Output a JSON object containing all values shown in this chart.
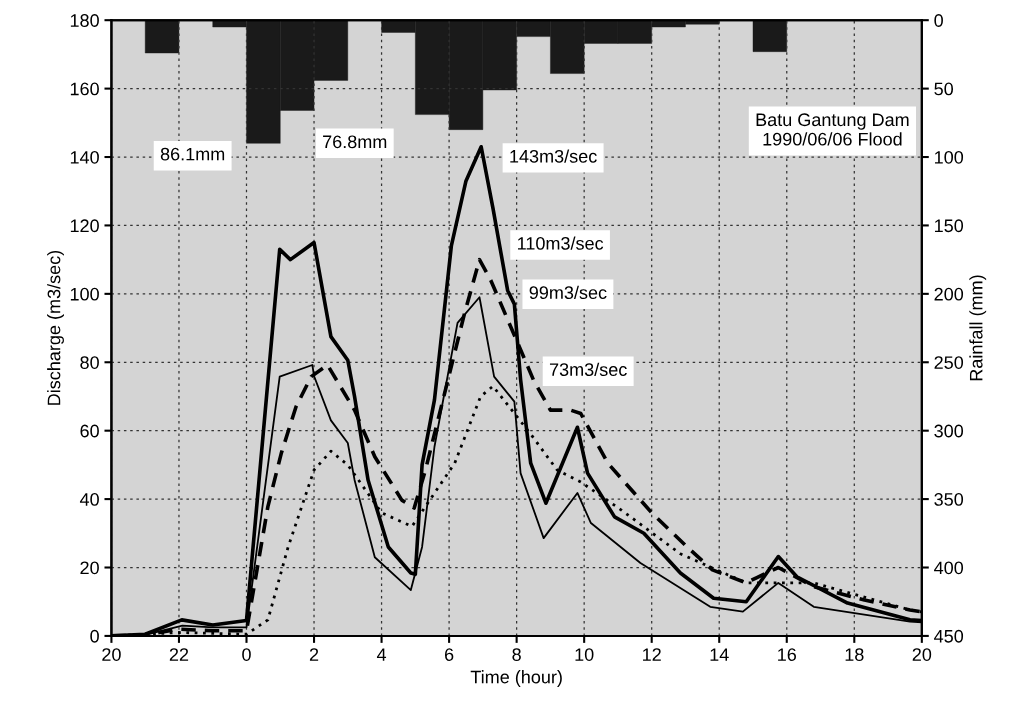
{
  "chart_data": {
    "type": "line",
    "xlabel": "Time (hour)",
    "ylabel": "Discharge (m3/sec)",
    "y2label": "Rainfall (mm)",
    "xlim": [
      "1990-06-05T20:00",
      "1990-06-06T20:00"
    ],
    "xticks": [
      {
        "value": "1990-06-05T20:00",
        "label": "20"
      },
      {
        "value": "1990-06-05T22:00",
        "label": "22"
      },
      {
        "value": "1990-06-06T00:00",
        "label": "0"
      },
      {
        "value": "1990-06-06T02:00",
        "label": "2"
      },
      {
        "value": "1990-06-06T04:00",
        "label": "4"
      },
      {
        "value": "1990-06-06T06:00",
        "label": "6"
      },
      {
        "value": "1990-06-06T08:00",
        "label": "8"
      },
      {
        "value": "1990-06-06T10:00",
        "label": "10"
      },
      {
        "value": "1990-06-06T12:00",
        "label": "12"
      },
      {
        "value": "1990-06-06T14:00",
        "label": "14"
      },
      {
        "value": "1990-06-06T16:00",
        "label": "16"
      },
      {
        "value": "1990-06-06T18:00",
        "label": "18"
      },
      {
        "value": "1990-06-06T20:00",
        "label": "20"
      }
    ],
    "ylim": [
      0,
      180
    ],
    "yticks": [
      0,
      20,
      40,
      60,
      80,
      100,
      120,
      140,
      160,
      180
    ],
    "y2lim": [
      450,
      0
    ],
    "y2ticks": [
      0,
      50,
      100,
      150,
      200,
      250,
      300,
      350,
      400,
      450
    ],
    "grid": true,
    "legend": false,
    "marker": "none",
    "series": [
      {
        "type": "bar",
        "axis": "y2",
        "color": "#1a1a1a",
        "x": [
          "1990-06-05T21:30",
          "1990-06-05T23:30",
          "1990-06-06T00:30",
          "1990-06-06T01:30",
          "1990-06-06T02:30",
          "1990-06-06T04:30",
          "1990-06-06T05:30",
          "1990-06-06T06:30",
          "1990-06-06T07:30",
          "1990-06-06T08:30",
          "1990-06-06T09:30",
          "1990-06-06T10:30",
          "1990-06-06T11:30",
          "1990-06-06T12:30",
          "1990-06-06T13:30",
          "1990-06-06T15:30"
        ],
        "values": [
          24,
          5,
          90,
          66,
          44,
          9,
          69,
          80,
          51,
          12,
          39,
          17,
          17,
          5,
          3,
          23
        ]
      },
      {
        "line_style": "solid",
        "color": "#000000",
        "x": [
          "1990-06-05T20:00",
          "1990-06-05T21:00",
          "1990-06-05T22:05",
          "1990-06-05T23:00",
          "1990-06-06T00:00",
          "1990-06-06T00:59",
          "1990-06-06T01:18",
          "1990-06-06T02:00",
          "1990-06-06T02:30",
          "1990-06-06T03:00",
          "1990-06-06T03:12",
          "1990-06-06T03:36",
          "1990-06-06T04:12",
          "1990-06-06T04:52",
          "1990-06-06T05:00",
          "1990-06-06T05:12",
          "1990-06-06T05:34",
          "1990-06-06T06:04",
          "1990-06-06T06:30",
          "1990-06-06T06:57",
          "1990-06-06T07:18",
          "1990-06-06T07:44",
          "1990-06-06T07:56",
          "1990-06-06T08:07",
          "1990-06-06T08:25",
          "1990-06-06T08:52",
          "1990-06-06T09:48",
          "1990-06-06T10:06",
          "1990-06-06T10:54",
          "1990-06-06T11:46",
          "1990-06-06T12:51",
          "1990-06-06T13:50",
          "1990-06-06T14:48",
          "1990-06-06T15:45",
          "1990-06-06T16:18",
          "1990-06-06T17:48",
          "1990-06-06T19:39",
          "1990-06-06T20:00"
        ],
        "values": [
          0,
          0.5,
          4.7,
          3.2,
          4.5,
          113,
          110,
          115,
          87.5,
          80.6,
          70,
          45.6,
          26,
          18.4,
          18,
          50,
          69,
          114,
          133,
          143,
          125,
          101,
          97,
          75,
          50.5,
          38.8,
          61,
          47.6,
          34.8,
          30,
          18.4,
          11,
          10,
          23.2,
          17.3,
          9.6,
          4.7,
          4.5
        ]
      },
      {
        "line_style": "solid",
        "color": "#000000",
        "x": [
          "1990-06-05T20:00",
          "1990-06-05T21:00",
          "1990-06-05T22:06",
          "1990-06-05T23:00",
          "1990-06-06T00:00",
          "1990-06-06T00:59",
          "1990-06-06T01:57",
          "1990-06-06T02:00",
          "1990-06-06T02:30",
          "1990-06-06T03:00",
          "1990-06-06T03:12",
          "1990-06-06T03:48",
          "1990-06-06T04:52",
          "1990-06-06T05:12",
          "1990-06-06T05:34",
          "1990-06-06T06:15",
          "1990-06-06T06:54",
          "1990-06-06T07:20",
          "1990-06-06T07:56",
          "1990-06-06T08:07",
          "1990-06-06T08:48",
          "1990-06-06T09:48",
          "1990-06-06T10:12",
          "1990-06-06T11:40",
          "1990-06-06T13:44",
          "1990-06-06T14:42",
          "1990-06-06T15:45",
          "1990-06-06T16:48",
          "1990-06-06T19:39",
          "1990-06-06T20:00"
        ],
        "values": [
          0,
          0.3,
          3,
          2.5,
          2.5,
          75.8,
          79.2,
          76,
          63,
          56.4,
          45.6,
          23,
          13.4,
          26,
          55.3,
          91.5,
          99,
          75.8,
          68.5,
          47.6,
          28.6,
          41.8,
          33,
          21.3,
          8.5,
          7.1,
          15.5,
          8.5,
          4.2,
          4
        ]
      },
      {
        "line_style": "dashed",
        "color": "#000000",
        "x": [
          "1990-06-05T20:00",
          "1990-06-05T21:00",
          "1990-06-05T22:00",
          "1990-06-05T23:00",
          "1990-06-06T00:00",
          "1990-06-06T00:38",
          "1990-06-06T01:02",
          "1990-06-06T01:28",
          "1990-06-06T01:55",
          "1990-06-06T02:24",
          "1990-06-06T03:12",
          "1990-06-06T03:48",
          "1990-06-06T04:36",
          "1990-06-06T04:58",
          "1990-06-06T05:18",
          "1990-06-06T06:27",
          "1990-06-06T06:54",
          "1990-06-06T07:14",
          "1990-06-06T08:02",
          "1990-06-06T08:30",
          "1990-06-06T09:00",
          "1990-06-06T09:36",
          "1990-06-06T09:54",
          "1990-06-06T10:42",
          "1990-06-06T12:00",
          "1990-06-06T13:03",
          "1990-06-06T13:48",
          "1990-06-06T14:48",
          "1990-06-06T15:06",
          "1990-06-06T15:45",
          "1990-06-06T16:48",
          "1990-06-06T18:18",
          "1990-06-06T19:39",
          "1990-06-06T20:00"
        ],
        "values": [
          0,
          0.3,
          2,
          1.5,
          1.5,
          37.8,
          53.5,
          67,
          75.8,
          79.2,
          66,
          52.4,
          39.7,
          37.4,
          48.5,
          94,
          110,
          104,
          85.6,
          74.8,
          66,
          66,
          65,
          50.5,
          36,
          26,
          19.3,
          15.5,
          17,
          20,
          14.4,
          10.5,
          7.6,
          7
        ]
      },
      {
        "line_style": "dotted",
        "color": "#000000",
        "x": [
          "1990-06-05T20:00",
          "1990-06-05T22:00",
          "1990-06-06T00:00",
          "1990-06-06T00:38",
          "1990-06-06T01:14",
          "1990-06-06T02:00",
          "1990-06-06T02:30",
          "1990-06-06T03:00",
          "1990-06-06T04:00",
          "1990-06-06T04:54",
          "1990-06-06T06:10",
          "1990-06-06T06:56",
          "1990-06-06T07:18",
          "1990-06-06T08:25",
          "1990-06-06T09:12",
          "1990-06-06T09:54",
          "1990-06-06T11:06",
          "1990-06-06T12:51",
          "1990-06-06T14:48",
          "1990-06-06T16:48",
          "1990-06-06T19:39",
          "1990-06-06T20:00"
        ],
        "values": [
          0,
          1,
          0.5,
          4.7,
          26,
          48.5,
          54,
          50,
          36,
          32,
          50.5,
          70,
          73,
          59,
          48.5,
          45,
          36.8,
          24,
          15.5,
          15.5,
          7.6,
          7
        ]
      }
    ],
    "annotations": [
      "86.1mm",
      "76.8mm",
      "Batu Gantung Dam\n1990/06/06 Flood",
      "110m3/sec",
      "99m3/sec",
      "73m3/sec",
      {
        "text": "143m3/sec",
        "x": "1990-06-06T06:57",
        "y": 143
      }
    ]
  }
}
